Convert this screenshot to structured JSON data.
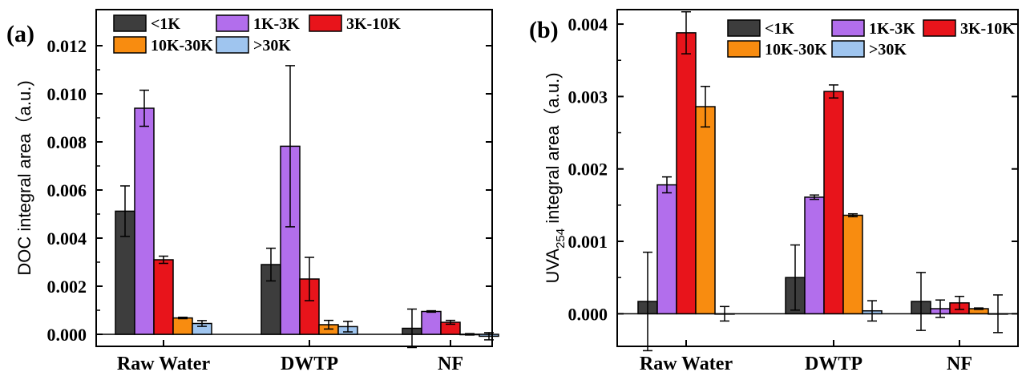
{
  "chart_data": [
    {
      "panel_label": "(a)",
      "type": "bar",
      "ylabel": "DOC integral area（a.u.)",
      "ylim": [
        -0.0005,
        0.0135
      ],
      "yticks": [
        "0.000",
        "0.002",
        "0.004",
        "0.006",
        "0.008",
        "0.010",
        "0.012"
      ],
      "categories": [
        "Raw Water",
        "DWTP",
        "NF"
      ],
      "series": [
        {
          "name": "<1K",
          "color": "#3d3d3d",
          "values": [
            0.00512,
            0.0029,
            0.00025
          ],
          "errors": [
            0.00105,
            0.00068,
            0.0008
          ]
        },
        {
          "name": "1K-3K",
          "color": "#b26eec",
          "values": [
            0.0094,
            0.00782,
            0.00095
          ],
          "errors": [
            0.00075,
            0.00335,
            3e-05
          ]
        },
        {
          "name": "3K-10K",
          "color": "#e8141b",
          "values": [
            0.0031,
            0.0023,
            0.0005
          ],
          "errors": [
            0.00015,
            0.0009,
            8e-05
          ]
        },
        {
          "name": "10K-30K",
          "color": "#f88c10",
          "values": [
            0.00068,
            0.0004,
            0.0
          ],
          "errors": [
            3e-05,
            0.00018,
            3e-05
          ]
        },
        {
          "name": ">30K",
          "color": "#9fc5ef",
          "values": [
            0.00045,
            0.00032,
            -8e-05
          ],
          "errors": [
            0.00012,
            0.00022,
            0.00015
          ]
        }
      ]
    },
    {
      "panel_label": "(b)",
      "type": "bar",
      "ylabel_main": "UVA",
      "ylabel_sub": "254",
      "ylabel_rest": " integral area（a.u.)",
      "ylim": [
        -0.00045,
        0.0042
      ],
      "yticks": [
        "0.000",
        "0.001",
        "0.002",
        "0.003",
        "0.004"
      ],
      "categories": [
        "Raw Water",
        "DWTP",
        "NF"
      ],
      "series": [
        {
          "name": "<1K",
          "color": "#3d3d3d",
          "values": [
            0.00017,
            0.0005,
            0.00017
          ],
          "errors": [
            0.00068,
            0.00045,
            0.0004
          ]
        },
        {
          "name": "1K-3K",
          "color": "#b26eec",
          "values": [
            0.00178,
            0.00161,
            7e-05
          ],
          "errors": [
            0.00011,
            3e-05,
            0.00012
          ]
        },
        {
          "name": "3K-10K",
          "color": "#e8141b",
          "values": [
            0.00388,
            0.00307,
            0.00015
          ],
          "errors": [
            0.00029,
            9e-05,
            9e-05
          ]
        },
        {
          "name": "10K-30K",
          "color": "#f88c10",
          "values": [
            0.00286,
            0.00136,
            7e-05
          ],
          "errors": [
            0.00028,
            2e-05,
            1e-05
          ]
        },
        {
          "name": ">30K",
          "color": "#9fc5ef",
          "values": [
            0.0,
            4e-05,
            0.0
          ],
          "errors": [
            0.0001,
            0.00014,
            0.00026
          ]
        }
      ]
    }
  ]
}
